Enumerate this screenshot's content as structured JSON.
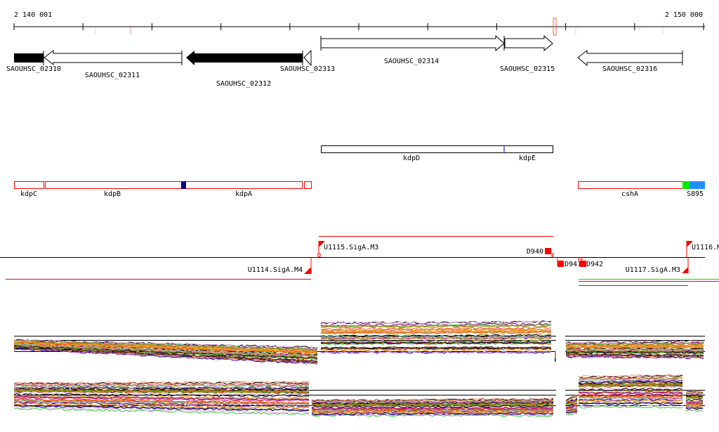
{
  "ruler": {
    "start_label": "2 140 001",
    "end_label": "2 150 000"
  },
  "genes": [
    {
      "id": "SAOUHSC_02310",
      "strand": "-",
      "fill": "#000000"
    },
    {
      "id": "SAOUHSC_02311",
      "strand": "-",
      "fill": "#ffffff"
    },
    {
      "id": "SAOUHSC_02312",
      "strand": "-",
      "fill": "#000000"
    },
    {
      "id": "SAOUHSC_02313",
      "strand": "-",
      "fill": "#ffffff"
    },
    {
      "id": "SAOUHSC_02314",
      "strand": "+",
      "fill": "#ffffff"
    },
    {
      "id": "SAOUHSC_02315",
      "strand": "+",
      "fill": "#ffffff"
    },
    {
      "id": "SAOUHSC_02316",
      "strand": "-",
      "fill": "#ffffff"
    }
  ],
  "operons_plus": [
    {
      "label": "kdpD"
    },
    {
      "label": "kdpE"
    }
  ],
  "operons_minus": [
    {
      "label": "kdpC"
    },
    {
      "label": "kdpB"
    },
    {
      "label": "kdpA"
    },
    {
      "label": "cshA"
    },
    {
      "label": "S895"
    }
  ],
  "features": [
    {
      "label": "U1114.SigA.M4"
    },
    {
      "label": "U1115.SigA.M3"
    },
    {
      "label": "D940"
    },
    {
      "label": "D941"
    },
    {
      "label": "D942"
    },
    {
      "label": "U1117.SigA.M3"
    },
    {
      "label": "U1116.M"
    }
  ],
  "colors": {
    "feature": "#ff0000",
    "operon_plus": "#0000cc",
    "operon_minus": "#ff0000",
    "navy": "#000080",
    "green": "#00ee00",
    "sky": "#1e90ff"
  },
  "expression": {
    "series_count": 42,
    "palette": [
      "#ff6347",
      "#800080",
      "#cd853f",
      "#8b8b00",
      "#000000",
      "#c71585",
      "#6495ed",
      "#d2691e",
      "#32cd32",
      "#b8860b",
      "#dda0dd",
      "#ff4500",
      "#87ceeb",
      "#a0522d",
      "#9acd32",
      "#db7093",
      "#000080",
      "#ffa500",
      "#808000",
      "#e9967a",
      "#ba55d3"
    ]
  }
}
